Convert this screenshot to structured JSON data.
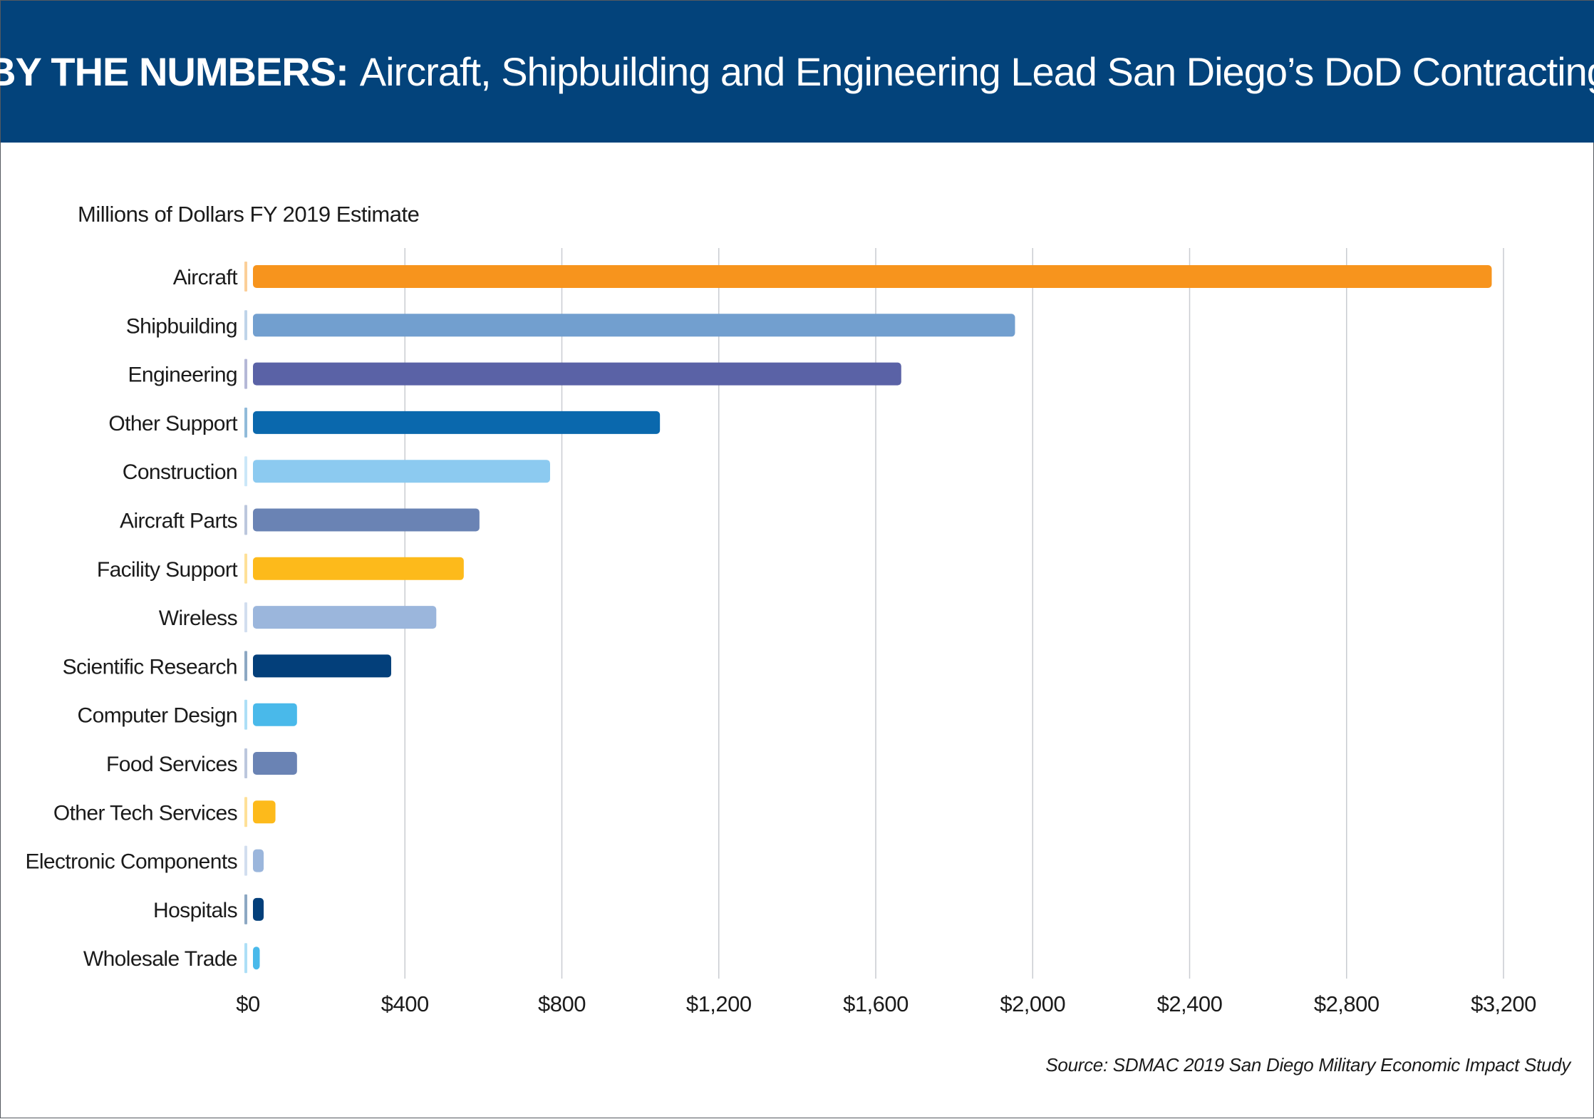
{
  "header": {
    "title_lead": "BY THE NUMBERS:",
    "title_rest": "Aircraft, Shipbuilding and Engineering Lead San Diego’s DoD Contracting"
  },
  "subtitle": "Millions of Dollars FY 2019 Estimate",
  "source": "Source: SDMAC 2019 San Diego Military Economic Impact Study",
  "colors": {
    "banner": "#03437b",
    "gridline": "#c9ccd1"
  },
  "chart_data": {
    "type": "bar",
    "orientation": "horizontal",
    "title": "",
    "xlabel": "",
    "ylabel": "",
    "xlim": [
      0,
      3200
    ],
    "x_ticks": [
      0,
      400,
      800,
      1200,
      1600,
      2000,
      2400,
      2800,
      3200
    ],
    "x_tick_labels": [
      "$0",
      "$400",
      "$800",
      "$1,200",
      "$1,600",
      "$2,000",
      "$2,400",
      "$2,800",
      "$3,200"
    ],
    "grid": "vertical",
    "legend": "none",
    "categories": [
      "Aircraft",
      "Shipbuilding",
      "Engineering",
      "Other Support",
      "Construction",
      "Aircraft Parts",
      "Facility Support",
      "Wireless",
      "Scientific Research",
      "Computer Design",
      "Food Services",
      "Other Tech Services",
      "Electronic Components",
      "Hospitals",
      "Wholesale Trade"
    ],
    "values": [
      3170,
      1955,
      1665,
      1050,
      770,
      590,
      550,
      480,
      365,
      125,
      125,
      70,
      40,
      40,
      30
    ],
    "colors": [
      "#f7941d",
      "#729fcf",
      "#5a62a6",
      "#0a68ad",
      "#8ccaf0",
      "#6a83b4",
      "#fdba1b",
      "#9bb6dc",
      "#033f7a",
      "#49b9ea",
      "#6a83b4",
      "#fdba1b",
      "#9bb6dc",
      "#033f7a",
      "#49b9ea"
    ]
  }
}
